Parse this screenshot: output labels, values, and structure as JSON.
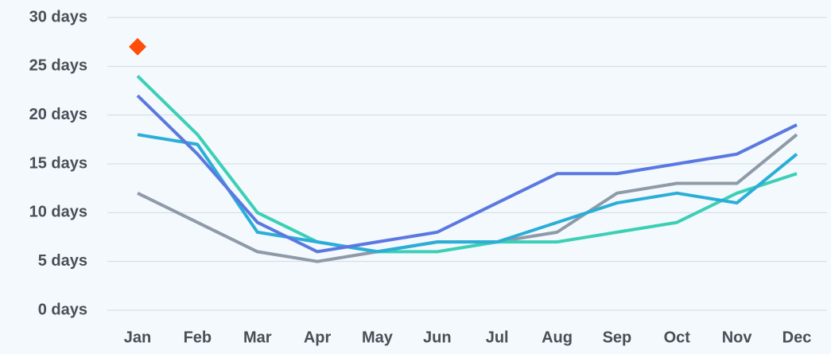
{
  "chart_data": {
    "type": "line",
    "categories": [
      "Jan",
      "Feb",
      "Mar",
      "Apr",
      "May",
      "Jun",
      "Jul",
      "Aug",
      "Sep",
      "Oct",
      "Nov",
      "Dec"
    ],
    "series": [
      {
        "color": "#8f9aa8",
        "values": [
          12,
          9,
          6,
          5,
          6,
          7,
          7,
          8,
          12,
          13,
          13,
          18
        ]
      },
      {
        "color": "#3ccfb6",
        "values": [
          24,
          18,
          10,
          7,
          6,
          6,
          7,
          7,
          8,
          9,
          12,
          14
        ]
      },
      {
        "color": "#2aaed8",
        "values": [
          18,
          17,
          8,
          7,
          6,
          7,
          7,
          9,
          11,
          12,
          11,
          16
        ]
      },
      {
        "color": "#5b78e0",
        "values": [
          22,
          16,
          9,
          6,
          7,
          8,
          11,
          14,
          14,
          15,
          16,
          19
        ]
      },
      {
        "color": "#ff4d0a",
        "style": "marker",
        "values": [
          27,
          null,
          null,
          null,
          null,
          null,
          null,
          null,
          null,
          null,
          null,
          null
        ]
      }
    ],
    "ylim": [
      0,
      30
    ],
    "yticks": [
      {
        "value": 0,
        "label": "0 days"
      },
      {
        "value": 5,
        "label": "5 days"
      },
      {
        "value": 10,
        "label": "10 days"
      },
      {
        "value": 15,
        "label": "15 days"
      },
      {
        "value": 20,
        "label": "20 days"
      },
      {
        "value": 25,
        "label": "25 days"
      },
      {
        "value": 30,
        "label": "30 days"
      }
    ],
    "grid": true
  }
}
